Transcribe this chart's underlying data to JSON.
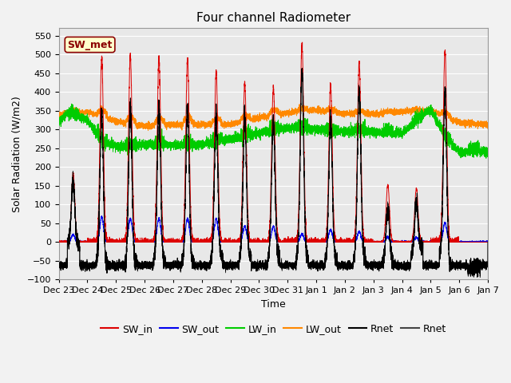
{
  "title": "Four channel Radiometer",
  "xlabel": "Time",
  "ylabel": "Solar Radiation (W/m2)",
  "ylim": [
    -100,
    570
  ],
  "yticks": [
    -100,
    -50,
    0,
    50,
    100,
    150,
    200,
    250,
    300,
    350,
    400,
    450,
    500,
    550
  ],
  "x_tick_labels": [
    "Dec 23",
    "Dec 24",
    "Dec 25",
    "Dec 26",
    "Dec 27",
    "Dec 28",
    "Dec 29",
    "Dec 30",
    "Dec 31",
    "Jan 1",
    "Jan 2",
    "Jan 3",
    "Jan 4",
    "Jan 5",
    "Jan 6",
    "Jan 7"
  ],
  "annotation_text": "SW_met",
  "annotation_bg": "#ffffcc",
  "annotation_edge": "#8b0000",
  "colors": {
    "SW_in": "#dd0000",
    "SW_out": "#0000ee",
    "LW_in": "#00cc00",
    "LW_out": "#ff8800",
    "Rnet_black": "#000000",
    "Rnet_dark": "#444444"
  },
  "background_color": "#e8e8e8",
  "grid_color": "#ffffff",
  "title_fontsize": 11,
  "axis_fontsize": 9,
  "tick_fontsize": 8,
  "legend_fontsize": 9
}
